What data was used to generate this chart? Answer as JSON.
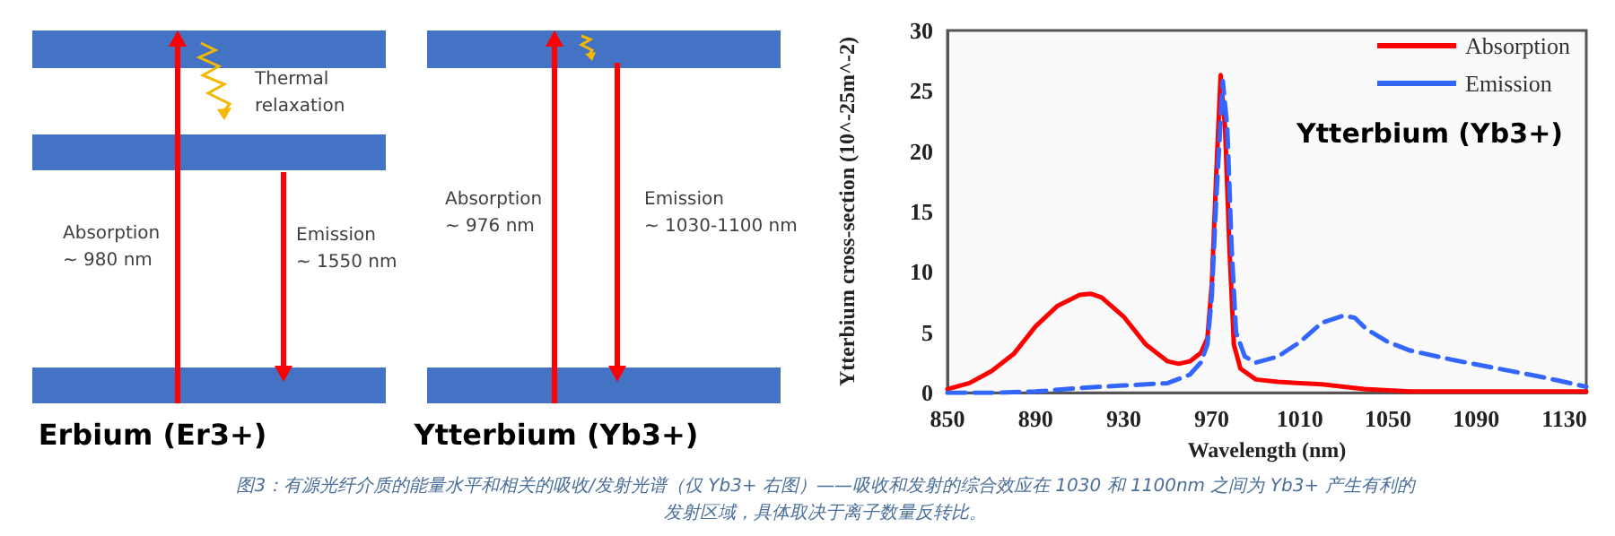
{
  "chart_data": [
    {
      "type": "other",
      "title": "Erbium (Er3+)",
      "annotations": [
        "Thermal\nrelaxation",
        "Absorption\n~ 980 nm",
        "Emission\n~ 1550 nm"
      ]
    },
    {
      "type": "other",
      "title": "Ytterbium (Yb3+)",
      "annotations": [
        "Absorption\n~ 976 nm",
        "Emission\n~ 1030-1100 nm"
      ]
    },
    {
      "type": "line",
      "title": "Ytterbium (Yb3+)",
      "xlabel": "Wavelength (nm)",
      "ylabel": "Ytterbium cross-section (10^-25m^-2)",
      "xlim": [
        850,
        1140
      ],
      "xticks": [
        850,
        890,
        930,
        970,
        1010,
        1050,
        1090,
        1130
      ],
      "ylim": [
        0,
        30
      ],
      "yticks": [
        0,
        5,
        10,
        15,
        20,
        25,
        30
      ],
      "grid": false,
      "legend": "top right",
      "marker": "none",
      "annotations": [
        "图3：有源光纤介质的能量水平和相关的吸收/发射光谱（仅 Yb3+ 右图）——吸收和发射的综合效应在 1030 和 1100nm 之间为 Yb3+ 产生有利的发射区域，具体取决于离子数量反转比。"
      ],
      "series": [
        {
          "name": "Absorption",
          "color": "#ff0000",
          "line_style": "solid",
          "x": [
            850,
            860,
            870,
            880,
            890,
            900,
            910,
            915,
            920,
            930,
            940,
            950,
            955,
            960,
            965,
            968,
            970,
            972,
            974,
            976,
            978,
            980,
            983,
            990,
            1000,
            1010,
            1020,
            1030,
            1040,
            1060,
            1090,
            1140
          ],
          "values": [
            0.3,
            0.8,
            1.8,
            3.2,
            5.5,
            7.2,
            8.1,
            8.2,
            7.9,
            6.3,
            4.0,
            2.6,
            2.4,
            2.6,
            3.3,
            4.5,
            9,
            18,
            26.3,
            22,
            12,
            4,
            2,
            1.1,
            0.9,
            0.8,
            0.7,
            0.5,
            0.3,
            0.1,
            0.1,
            0.1
          ]
        },
        {
          "name": "Emission",
          "color": "#3366ff",
          "line_style": "dashed",
          "x": [
            850,
            870,
            890,
            910,
            930,
            950,
            960,
            965,
            968,
            970,
            972,
            975,
            977,
            979,
            981,
            985,
            990,
            1000,
            1010,
            1020,
            1030,
            1035,
            1040,
            1050,
            1060,
            1080,
            1100,
            1120,
            1140
          ],
          "values": [
            0,
            0,
            0.1,
            0.4,
            0.6,
            0.8,
            1.5,
            2.5,
            4,
            8,
            16,
            25.8,
            22,
            12,
            5,
            3,
            2.5,
            3,
            4.2,
            5.8,
            6.4,
            6.2,
            5.3,
            4.2,
            3.5,
            2.7,
            2.0,
            1.3,
            0.5
          ]
        }
      ]
    }
  ]
}
